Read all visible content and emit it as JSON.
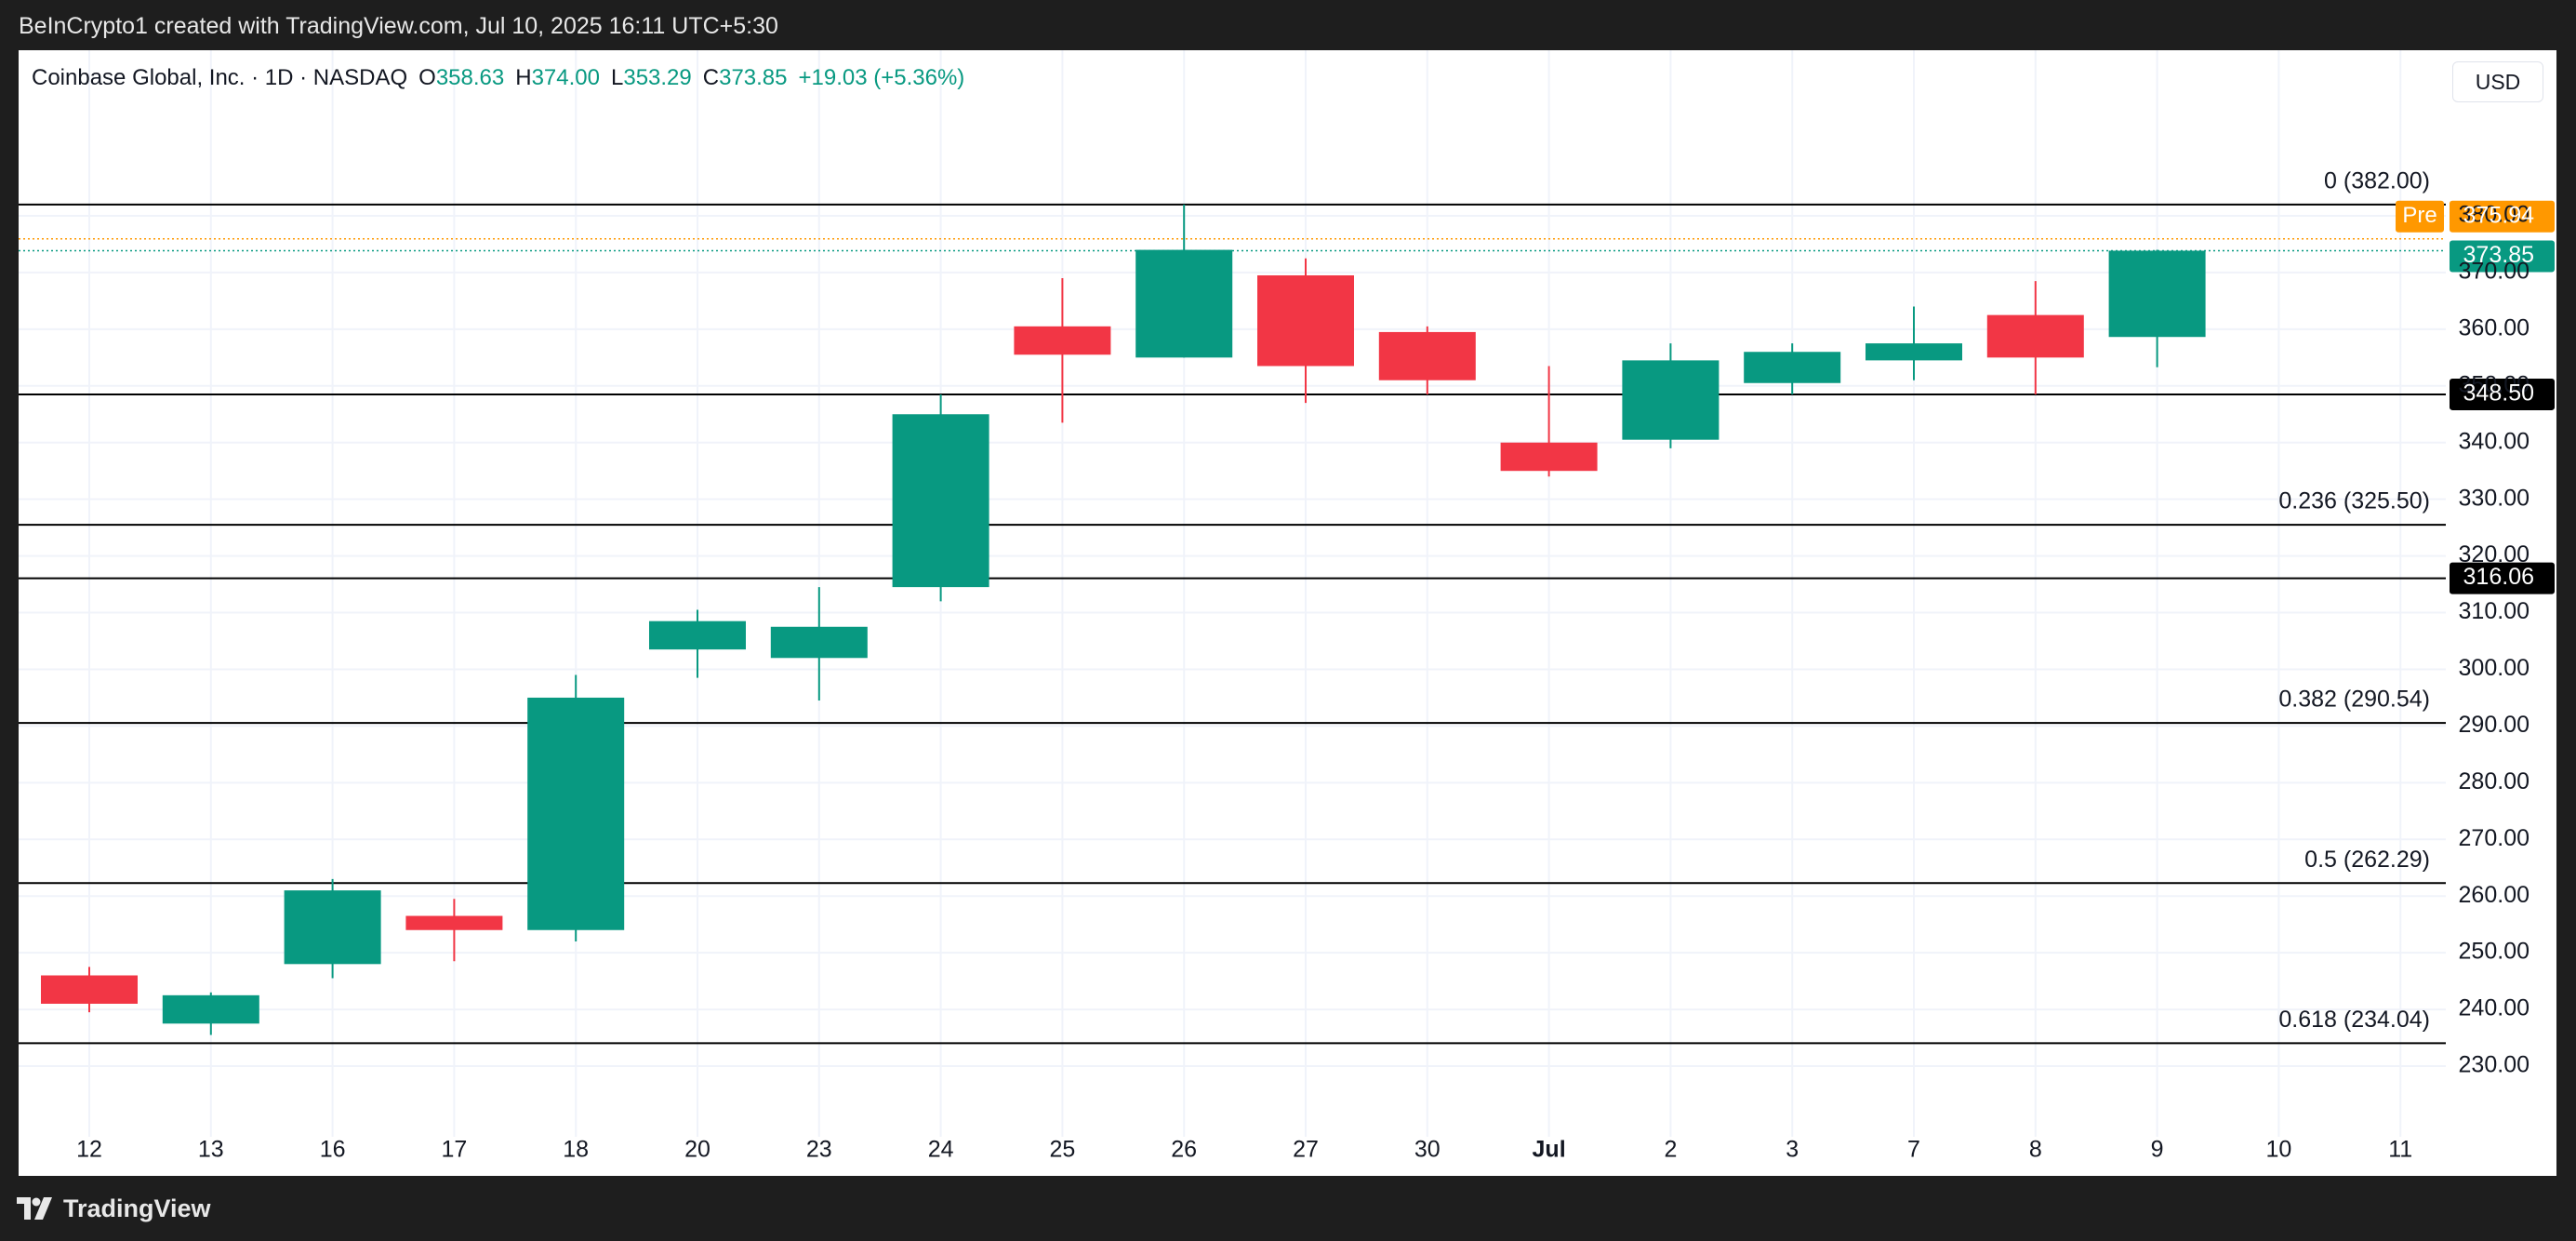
{
  "header": {
    "attribution": "BeInCrypto1 created with TradingView.com, Jul 10, 2025 16:11 UTC+5:30"
  },
  "legend": {
    "symbol": "Coinbase Global, Inc. · 1D · NASDAQ",
    "open_label": "O",
    "open": "358.63",
    "high_label": "H",
    "high": "374.00",
    "low_label": "L",
    "low": "353.29",
    "close_label": "C",
    "close": "373.85",
    "change": "+19.03 (+5.36%)"
  },
  "currency": "USD",
  "footer": {
    "brand": "TradingView"
  },
  "colors": {
    "up": "#089981",
    "down": "#f23645",
    "pre": "#ff9800",
    "black": "#000000",
    "grid": "#f0f3fa",
    "axis_text": "#131722"
  },
  "chart_data": {
    "type": "candlestick",
    "x_labels": [
      "12",
      "13",
      "16",
      "17",
      "18",
      "20",
      "23",
      "24",
      "25",
      "26",
      "27",
      "30",
      "Jul",
      "2",
      "3",
      "7",
      "8",
      "9",
      "10",
      "11"
    ],
    "candles": [
      {
        "date": "12",
        "open": 246,
        "high": 247.5,
        "low": 239.5,
        "close": 241
      },
      {
        "date": "13",
        "open": 237.5,
        "high": 243,
        "low": 235.5,
        "close": 242.5
      },
      {
        "date": "16",
        "open": 248,
        "high": 263,
        "low": 245.5,
        "close": 261
      },
      {
        "date": "17",
        "open": 256.5,
        "high": 259.5,
        "low": 248.5,
        "close": 254
      },
      {
        "date": "18",
        "open": 254,
        "high": 299,
        "low": 252,
        "close": 295
      },
      {
        "date": "20",
        "open": 303.5,
        "high": 310.5,
        "low": 298.5,
        "close": 308.5
      },
      {
        "date": "23",
        "open": 302,
        "high": 314.5,
        "low": 294.5,
        "close": 307.5
      },
      {
        "date": "24",
        "open": 314.5,
        "high": 348.5,
        "low": 312,
        "close": 345
      },
      {
        "date": "25",
        "open": 360.5,
        "high": 369,
        "low": 343.5,
        "close": 355.5
      },
      {
        "date": "26",
        "open": 355,
        "high": 382,
        "low": 355,
        "close": 374
      },
      {
        "date": "27",
        "open": 369.5,
        "high": 372.5,
        "low": 347,
        "close": 353.5
      },
      {
        "date": "30",
        "open": 359.5,
        "high": 360.5,
        "low": 348.5,
        "close": 351
      },
      {
        "date": "Jul",
        "open": 340,
        "high": 353.5,
        "low": 334,
        "close": 335
      },
      {
        "date": "2",
        "open": 340.5,
        "high": 357.5,
        "low": 339,
        "close": 354.5
      },
      {
        "date": "3",
        "open": 350.5,
        "high": 357.5,
        "low": 348.5,
        "close": 356
      },
      {
        "date": "7",
        "open": 354.5,
        "high": 364,
        "low": 351,
        "close": 357.5
      },
      {
        "date": "8",
        "open": 362.5,
        "high": 368.5,
        "low": 348.5,
        "close": 355
      },
      {
        "date": "9",
        "open": 358.63,
        "high": 374,
        "low": 353.29,
        "close": 373.85
      }
    ],
    "y_ticks": [
      "230.00",
      "240.00",
      "250.00",
      "260.00",
      "270.00",
      "280.00",
      "290.00",
      "300.00",
      "310.00",
      "320.00",
      "330.00",
      "340.00",
      "350.00",
      "360.00",
      "370.00",
      "380.00"
    ],
    "ylim": [
      222,
      397
    ],
    "fib_levels": [
      {
        "label": "0 (382.00)",
        "value": 382.0
      },
      {
        "label": "0.236 (325.50)",
        "value": 325.5
      },
      {
        "label": "0.382 (290.54)",
        "value": 290.54
      },
      {
        "label": "0.5 (262.29)",
        "value": 262.29
      },
      {
        "label": "0.618 (234.04)",
        "value": 234.04
      }
    ],
    "horizontal_lines": [
      {
        "label": "348.50",
        "value": 348.5
      },
      {
        "label": "316.06",
        "value": 316.06
      }
    ],
    "price_tags": [
      {
        "prefix": "Pre",
        "label": "375.94",
        "value": 375.94,
        "color": "#ff9800"
      },
      {
        "label": "373.85",
        "value": 373.85,
        "color": "#089981"
      }
    ]
  }
}
